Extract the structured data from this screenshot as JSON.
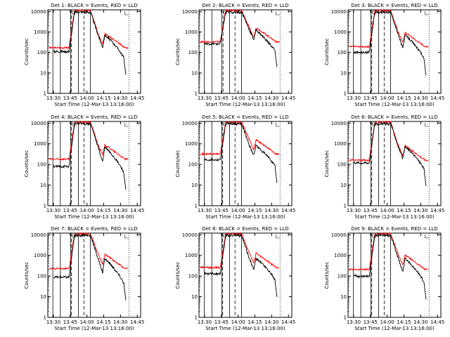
{
  "colors": {
    "events": "#000000",
    "lld": "#ff0000",
    "axes": "#000000"
  },
  "common": {
    "ylabel": "Counts/sec",
    "xlabel": "Start Time (12-Mar-13 13:16:00)",
    "x_ticks": [
      "13:30",
      "13:45",
      "14:00",
      "14:15",
      "14:30",
      "14:45"
    ],
    "y_ticks": [
      "1",
      "10",
      "100",
      "1000",
      "10000"
    ],
    "y_scale": "log",
    "y_range": [
      1,
      12000
    ],
    "x_range_min": [
      13.5,
      45
    ]
  },
  "chart_data": [
    {
      "type": "line",
      "title": "Det 1: BLACK = Events, RED = LLD",
      "events_base": 110,
      "lld_base": 170,
      "peak_events": 10000,
      "peak_lld": 12000,
      "gap_start": 6.5,
      "gap_end": 8,
      "x_events_start": 4,
      "solid_lines": [
        4.5,
        11.2,
        20.5,
        27.3,
        38
      ],
      "dashed_lines": [
        15.2,
        26.3
      ],
      "dotted_lines": [
        42.5
      ]
    },
    {
      "type": "line",
      "title": "Det 2: BLACK = Events, RED = LLD",
      "events_base": 260,
      "lld_base": 330,
      "peak_events": 10000,
      "peak_lld": 12000,
      "gap_start": 0,
      "gap_end": 0,
      "x_events_start": 0,
      "solid_lines": [
        4.8,
        11.5,
        20.5,
        27.3,
        38
      ],
      "dashed_lines": [
        15.5,
        26.2
      ],
      "dotted_lines": [
        42.5
      ]
    },
    {
      "type": "line",
      "title": "Det 3: BLACK = Events, RED = LLD",
      "events_base": 100,
      "lld_base": 190,
      "peak_events": 10000,
      "peak_lld": 12000,
      "gap_start": 5.5,
      "gap_end": 7.5,
      "x_events_start": 4,
      "solid_lines": [
        4.8,
        11.4,
        20.5,
        27.3,
        38
      ],
      "dashed_lines": [
        15.2,
        26.3
      ],
      "dotted_lines": [
        42.5
      ]
    },
    {
      "type": "line",
      "title": "Det 4: BLACK = Events, RED = LLD",
      "events_base": 80,
      "lld_base": 180,
      "peak_events": 10000,
      "peak_lld": 12000,
      "gap_start": 6.5,
      "gap_end": 8,
      "x_events_start": 4,
      "solid_lines": [
        4.5,
        11.2,
        20.5,
        27.3,
        38
      ],
      "dashed_lines": [
        15.2,
        26.3
      ],
      "dotted_lines": [
        42.5
      ]
    },
    {
      "type": "line",
      "title": "Det 5: BLACK = Events, RED = LLD",
      "events_base": 170,
      "lld_base": 320,
      "peak_events": 10000,
      "peak_lld": 12000,
      "gap_start": 6.5,
      "gap_end": 8,
      "x_events_start": 4,
      "solid_lines": [
        4.8,
        11.5,
        20.5,
        27.3,
        38
      ],
      "dashed_lines": [
        15.2,
        26.2
      ],
      "dotted_lines": [
        42.5
      ]
    },
    {
      "type": "line",
      "title": "Det 6: BLACK = Events, RED = LLD",
      "events_base": 120,
      "lld_base": 160,
      "peak_events": 10000,
      "peak_lld": 12000,
      "gap_start": 5.5,
      "gap_end": 7.5,
      "x_events_start": 4,
      "solid_lines": [
        4.8,
        11.4,
        20.5,
        27.3,
        38
      ],
      "dashed_lines": [
        15.2,
        26.3
      ],
      "dotted_lines": [
        42.5
      ]
    },
    {
      "type": "line",
      "title": "Det 7: BLACK = Events, RED = LLD",
      "events_base": 90,
      "lld_base": 230,
      "peak_events": 10000,
      "peak_lld": 12000,
      "gap_start": 6.5,
      "gap_end": 8,
      "x_events_start": 4,
      "solid_lines": [
        4.5,
        11.2,
        20.5,
        27.3,
        38
      ],
      "dashed_lines": [
        15.2,
        26.3
      ],
      "dotted_lines": [
        42.5
      ]
    },
    {
      "type": "line",
      "title": "Det 8: BLACK = Events, RED = LLD",
      "events_base": 130,
      "lld_base": 260,
      "peak_events": 10000,
      "peak_lld": 12000,
      "gap_start": 6.5,
      "gap_end": 8,
      "x_events_start": 4,
      "solid_lines": [
        4.8,
        11.5,
        20.5,
        27.3,
        38
      ],
      "dashed_lines": [
        15.2,
        26.2
      ],
      "dotted_lines": [
        42.5
      ]
    },
    {
      "type": "line",
      "title": "Det 9: BLACK = Events, RED = LLD",
      "events_base": 100,
      "lld_base": 210,
      "peak_events": 10000,
      "peak_lld": 12000,
      "gap_start": 5.5,
      "gap_end": 7.5,
      "x_events_start": 4,
      "solid_lines": [
        4.8,
        11.4,
        20.5,
        27.3,
        38
      ],
      "dashed_lines": [
        15.2,
        26.3
      ],
      "dotted_lines": [
        42.5
      ]
    }
  ]
}
